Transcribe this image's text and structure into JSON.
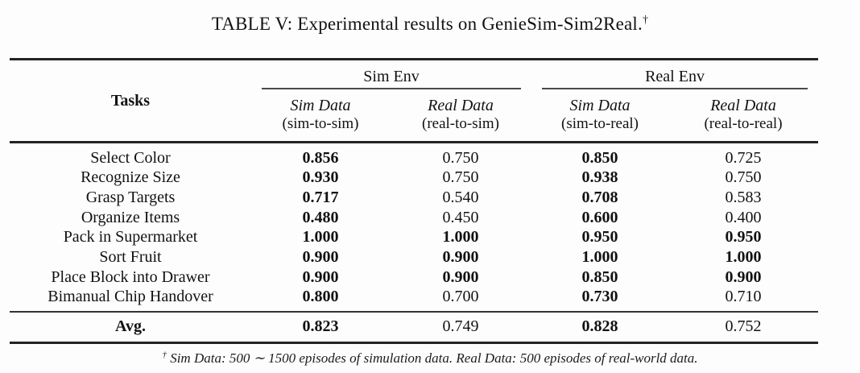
{
  "title": {
    "text": "TABLE V: Experimental results on GenieSim-Sim2Real.",
    "dagger": "†"
  },
  "colors": {
    "text": "#121212",
    "thick_rule": "#242424",
    "thin_rule": "#4a4a4a"
  },
  "table": {
    "tasks_header": "Tasks",
    "groups": [
      {
        "label": "Sim Env",
        "columns": [
          {
            "name": "Sim Data",
            "sub": "(sim-to-sim)"
          },
          {
            "name": "Real Data",
            "sub": "(real-to-sim)"
          }
        ]
      },
      {
        "label": "Real Env",
        "columns": [
          {
            "name": "Sim Data",
            "sub": "(sim-to-real)"
          },
          {
            "name": "Real Data",
            "sub": "(real-to-real)"
          }
        ]
      }
    ],
    "rows": [
      {
        "task": "Select Color",
        "values": [
          "0.856",
          "0.750",
          "0.850",
          "0.725"
        ],
        "bold": [
          true,
          false,
          true,
          false
        ]
      },
      {
        "task": "Recognize Size",
        "values": [
          "0.930",
          "0.750",
          "0.938",
          "0.750"
        ],
        "bold": [
          true,
          false,
          true,
          false
        ]
      },
      {
        "task": "Grasp Targets",
        "values": [
          "0.717",
          "0.540",
          "0.708",
          "0.583"
        ],
        "bold": [
          true,
          false,
          true,
          false
        ]
      },
      {
        "task": "Organize Items",
        "values": [
          "0.480",
          "0.450",
          "0.600",
          "0.400"
        ],
        "bold": [
          true,
          false,
          true,
          false
        ]
      },
      {
        "task": "Pack in Supermarket",
        "values": [
          "1.000",
          "1.000",
          "0.950",
          "0.950"
        ],
        "bold": [
          true,
          true,
          true,
          true
        ]
      },
      {
        "task": "Sort Fruit",
        "values": [
          "0.900",
          "0.900",
          "1.000",
          "1.000"
        ],
        "bold": [
          true,
          true,
          true,
          true
        ]
      },
      {
        "task": "Place Block into Drawer",
        "values": [
          "0.900",
          "0.900",
          "0.850",
          "0.900"
        ],
        "bold": [
          true,
          true,
          true,
          true
        ]
      },
      {
        "task": "Bimanual Chip Handover",
        "values": [
          "0.800",
          "0.700",
          "0.730",
          "0.710"
        ],
        "bold": [
          true,
          false,
          true,
          false
        ]
      }
    ],
    "avg_row": {
      "task": "Avg.",
      "values": [
        "0.823",
        "0.749",
        "0.828",
        "0.752"
      ],
      "bold": [
        true,
        false,
        true,
        false
      ]
    }
  },
  "footnote": {
    "dagger": "†",
    "text": "Sim Data: 500 ∼ 1500 episodes of simulation data. Real Data: 500 episodes of real-world data."
  }
}
